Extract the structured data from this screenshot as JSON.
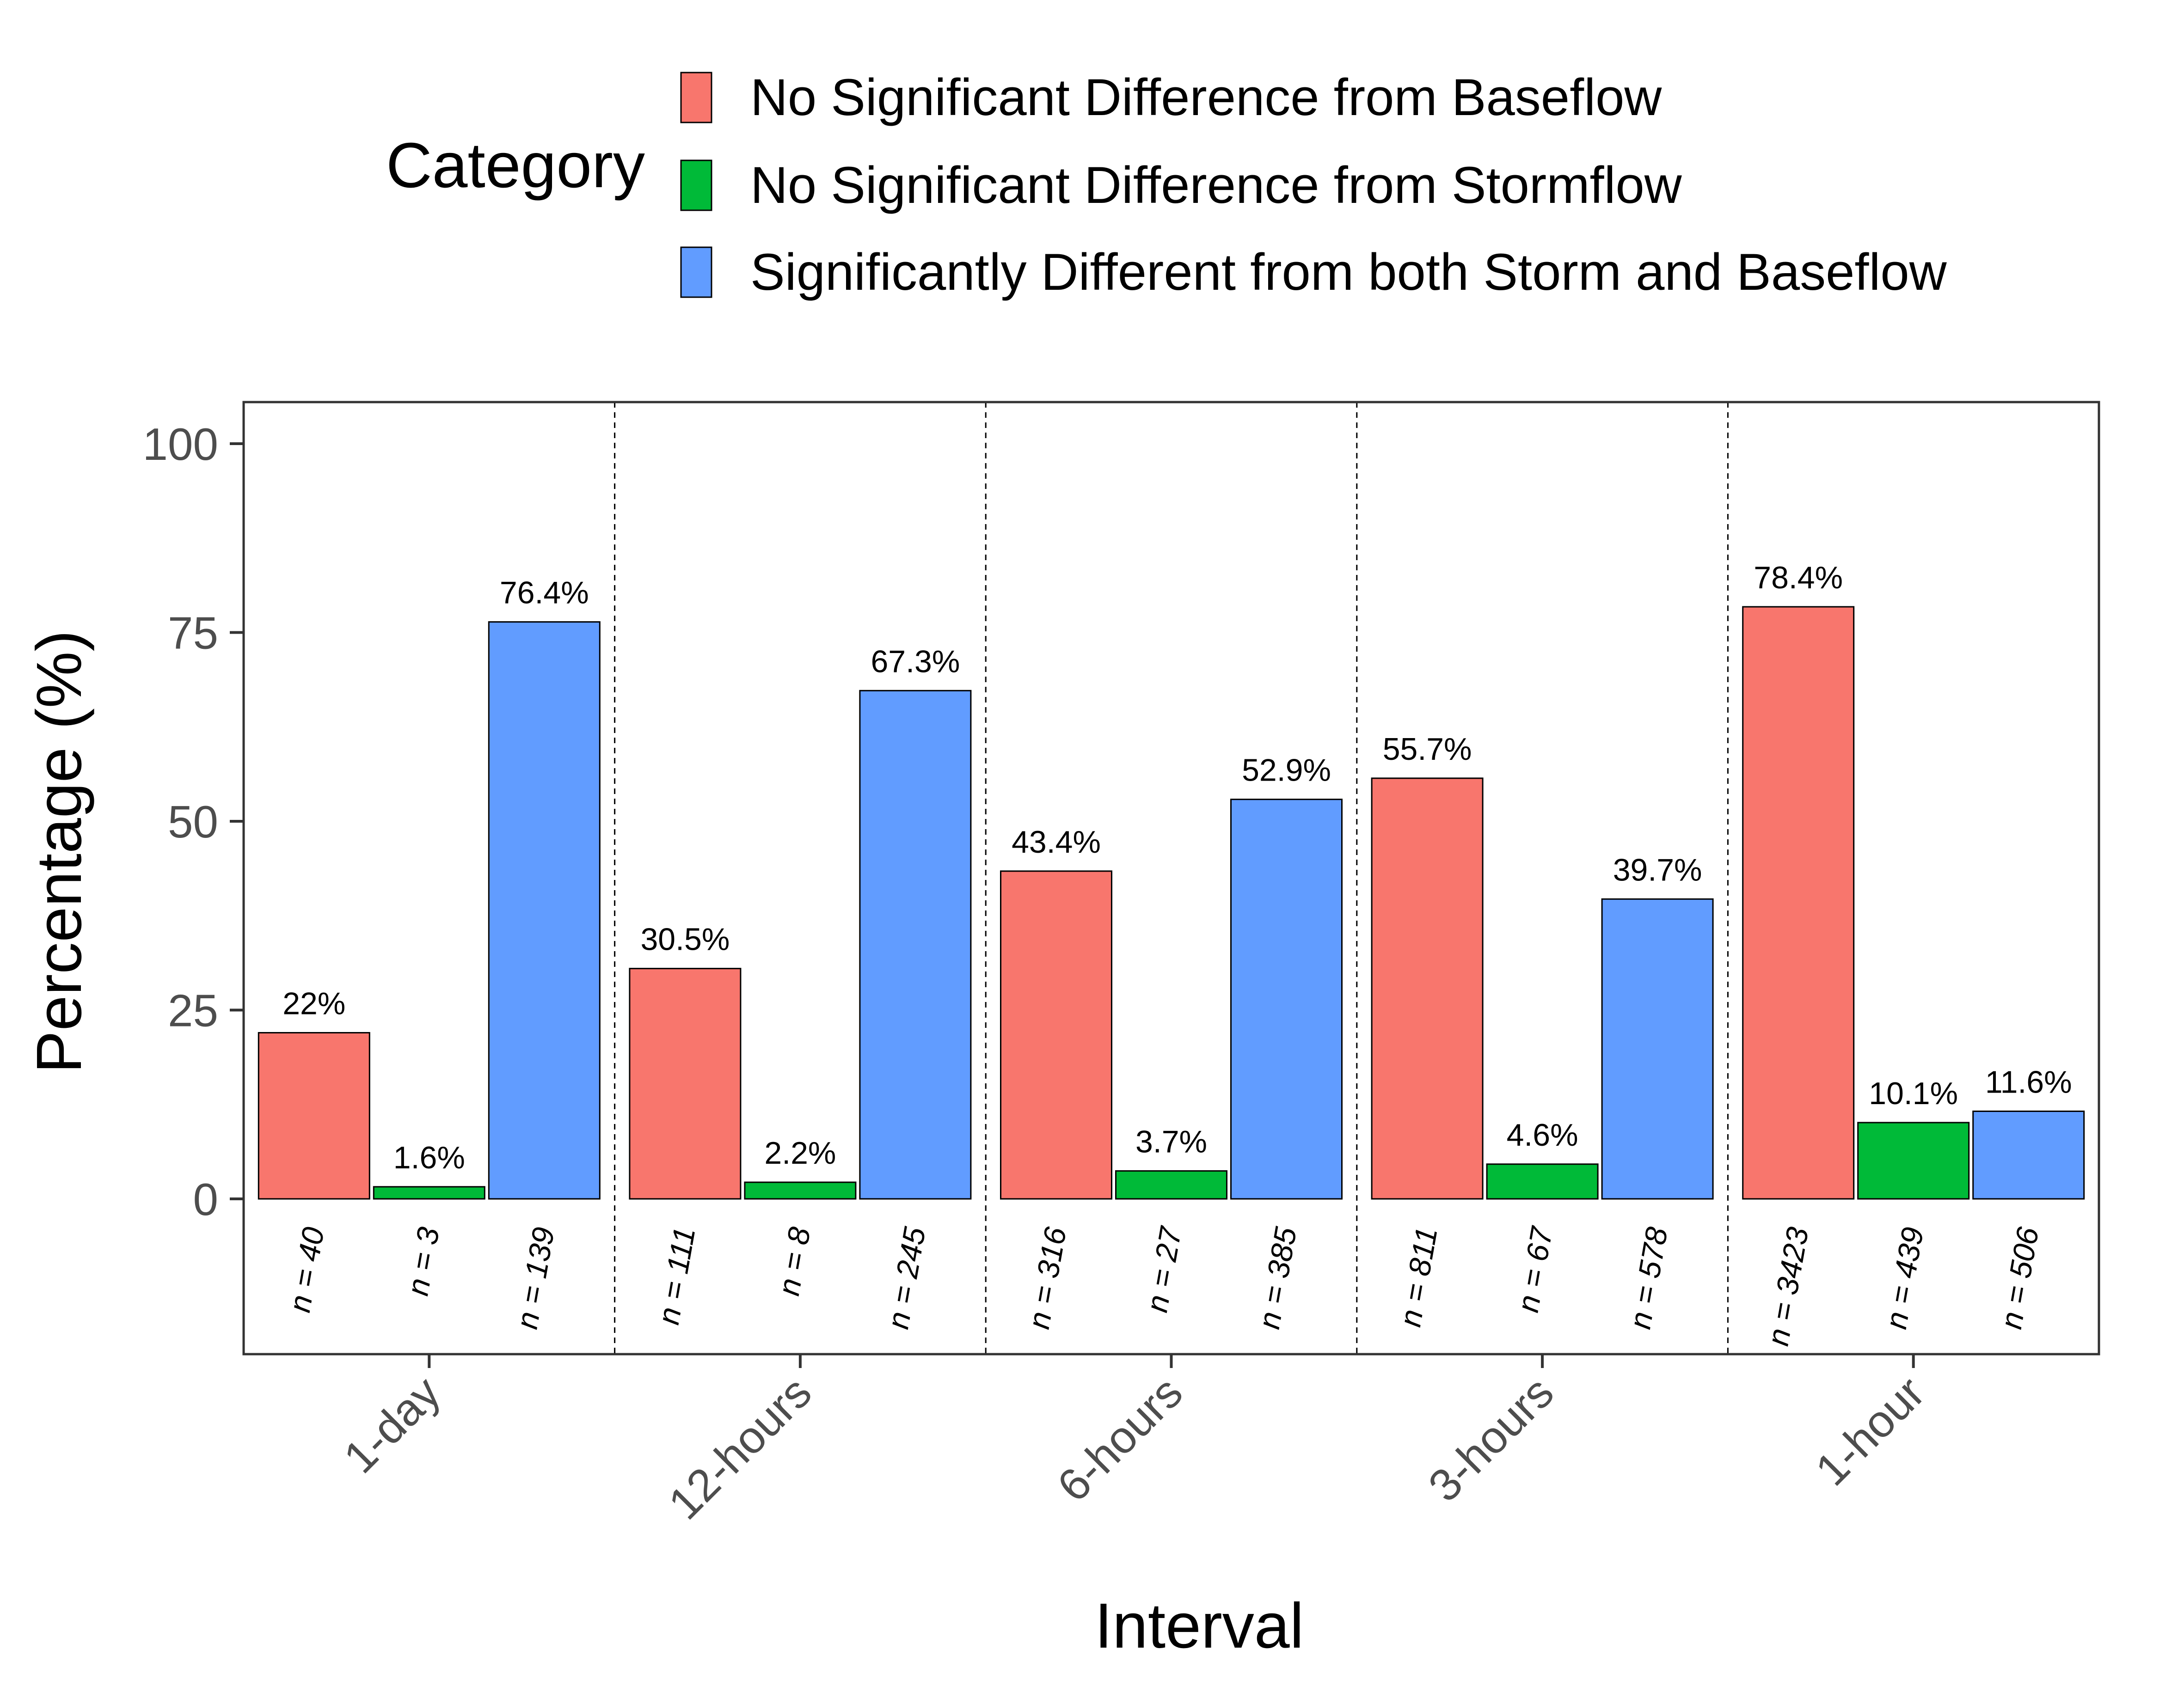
{
  "chart_data": {
    "type": "bar",
    "title": "",
    "xlabel": "Interval",
    "ylabel": "Percentage (%)",
    "ylim": [
      -20,
      105
    ],
    "yticks": [
      0,
      25,
      50,
      75,
      100
    ],
    "grid": false,
    "legend": {
      "title": "Category",
      "position": "top",
      "entries": [
        {
          "label": "No Significant Difference from Baseflow",
          "color": "#F8766D"
        },
        {
          "label": "No Significant Difference from Stormflow",
          "color": "#00BA38"
        },
        {
          "label": "Significantly Different from both Storm and Baseflow",
          "color": "#619CFF"
        }
      ]
    },
    "categories": [
      "1-day",
      "12-hours",
      "6-hours",
      "3-hours",
      "1-hour"
    ],
    "series": [
      {
        "name": "No Significant Difference from Baseflow",
        "color": "#F8766D",
        "values": [
          22,
          30.5,
          43.4,
          55.7,
          78.4
        ],
        "labels": [
          "22%",
          "30.5%",
          "43.4%",
          "55.7%",
          "78.4%"
        ],
        "counts": [
          "n = 40",
          "n = 111",
          "n = 316",
          "n = 811",
          "n = 3423"
        ]
      },
      {
        "name": "No Significant Difference from Stormflow",
        "color": "#00BA38",
        "values": [
          1.6,
          2.2,
          3.7,
          4.6,
          10.1
        ],
        "labels": [
          "1.6%",
          "2.2%",
          "3.7%",
          "4.6%",
          "10.1%"
        ],
        "counts": [
          "n = 3",
          "n = 8",
          "n = 27",
          "n = 67",
          "n = 439"
        ]
      },
      {
        "name": "Significantly Different from both Storm and Baseflow",
        "color": "#619CFF",
        "values": [
          76.4,
          67.3,
          52.9,
          39.7,
          11.6
        ],
        "labels": [
          "76.4%",
          "67.3%",
          "52.9%",
          "39.7%",
          "11.6%"
        ],
        "counts": [
          "n = 139",
          "n = 245",
          "n = 385",
          "n = 578",
          "n = 506"
        ]
      }
    ]
  }
}
